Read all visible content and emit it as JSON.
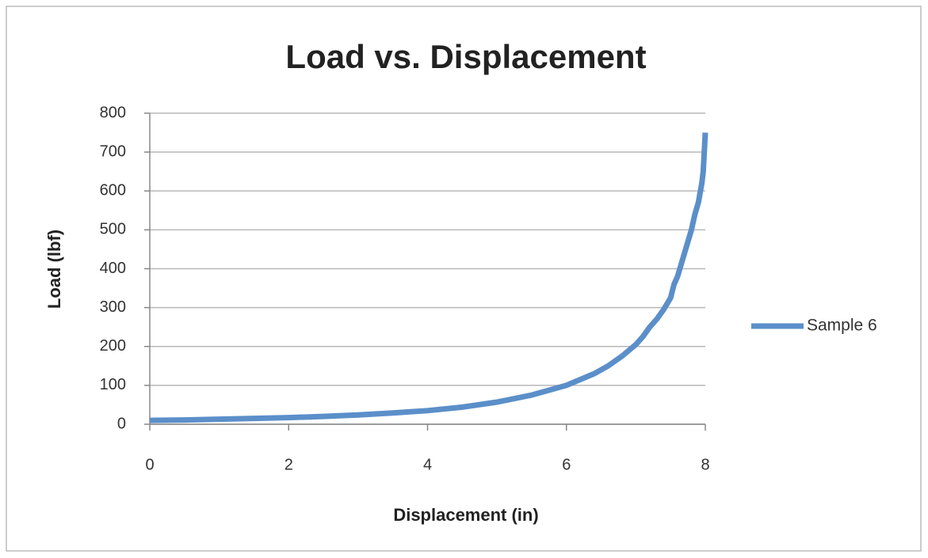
{
  "chart_data": {
    "type": "line",
    "title": "Load vs. Displacement",
    "x_label": "Displacement (in)",
    "y_label": "Load (lbf)",
    "x": [
      0,
      0.5,
      1,
      1.5,
      2,
      2.5,
      3,
      3.5,
      4,
      4.5,
      5,
      5.5,
      5.8,
      6,
      6.2,
      6.4,
      6.6,
      6.8,
      7,
      7.1,
      7.2,
      7.3,
      7.4,
      7.5,
      7.55,
      7.6,
      7.65,
      7.7,
      7.75,
      7.8,
      7.85,
      7.9,
      7.95,
      7.97,
      8
    ],
    "series": [
      {
        "name": "Sample 6",
        "color": "#5b8fc9",
        "values": [
          10,
          11,
          13,
          15,
          17,
          20,
          24,
          29,
          35,
          44,
          57,
          75,
          90,
          100,
          115,
          130,
          150,
          175,
          205,
          225,
          250,
          270,
          295,
          325,
          360,
          380,
          410,
          440,
          470,
          500,
          540,
          570,
          620,
          650,
          750
        ]
      }
    ],
    "xlim": [
      0,
      8
    ],
    "xticks": [
      0,
      2,
      4,
      6,
      8
    ],
    "ylim": [
      0,
      800
    ],
    "yticks": [
      0,
      100,
      200,
      300,
      400,
      500,
      600,
      700,
      800
    ],
    "grid": true,
    "legend": "right"
  }
}
